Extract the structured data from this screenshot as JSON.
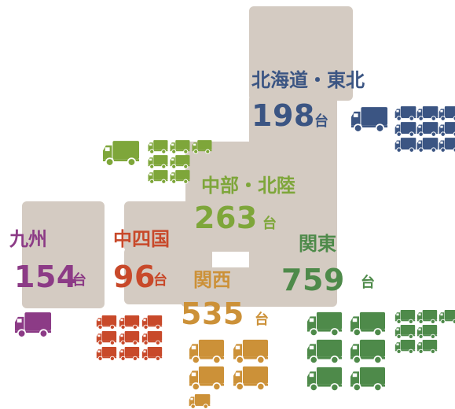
{
  "regions": [
    {
      "id": "hokkaido_tohoku",
      "name": "北海道・東北",
      "count": "198",
      "unit": "台",
      "color": "#3b5583"
    },
    {
      "id": "chubu_hokuriku",
      "name": "中部・北陸",
      "count": "263",
      "unit": "台",
      "color": "#7ea63a"
    },
    {
      "id": "kanto",
      "name": "関東",
      "count": "759",
      "unit": "台",
      "color": "#4e8a4a"
    },
    {
      "id": "kyushu",
      "name": "九州",
      "count": "154",
      "unit": "台",
      "color": "#8c3b86"
    },
    {
      "id": "chushikoku",
      "name": "中四国",
      "count": "96",
      "unit": "台",
      "color": "#c8492a"
    },
    {
      "id": "kansai",
      "name": "関西",
      "count": "535",
      "unit": "台",
      "color": "#cc9138"
    }
  ],
  "icons": {
    "truck": "truck-icon"
  }
}
